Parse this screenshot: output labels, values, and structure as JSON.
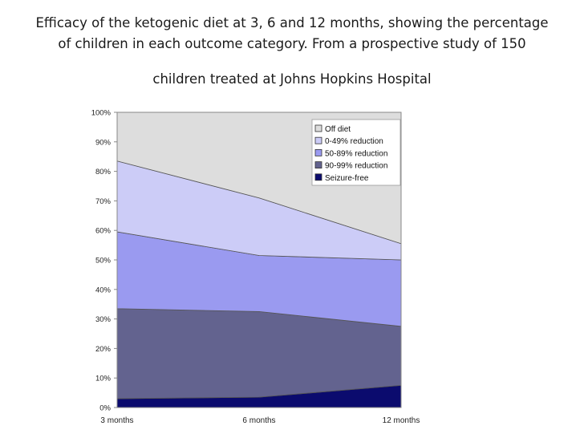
{
  "title": {
    "line1": "Efficacy of the ketogenic diet at 3, 6 and 12 months, showing the percentage",
    "line2": "of children in each outcome category. From a prospective study of 150",
    "line3": "children treated at Johns Hopkins Hospital"
  },
  "chart_data": {
    "type": "area",
    "stacked": true,
    "categories": [
      "3 months",
      "6 months",
      "12 months"
    ],
    "ylim": [
      0,
      100
    ],
    "yticks": [
      "0%",
      "10%",
      "20%",
      "30%",
      "40%",
      "50%",
      "60%",
      "70%",
      "80%",
      "90%",
      "100%"
    ],
    "grid": false,
    "legend_position": "top-right",
    "series": [
      {
        "name": "Seizure-free",
        "values": [
          3,
          3.5,
          7.5
        ],
        "color": "#0b0b6e"
      },
      {
        "name": "90-99% reduction",
        "values": [
          30.5,
          29,
          20
        ],
        "color": "#63638f"
      },
      {
        "name": "50-89% reduction",
        "values": [
          26,
          19,
          22.5
        ],
        "color": "#9a9af0"
      },
      {
        "name": "0-49% reduction",
        "values": [
          24,
          19.5,
          5.5
        ],
        "color": "#ccccf7"
      },
      {
        "name": "Off diet",
        "values": [
          16.5,
          29,
          44.5
        ],
        "color": "#dddddd"
      }
    ]
  }
}
